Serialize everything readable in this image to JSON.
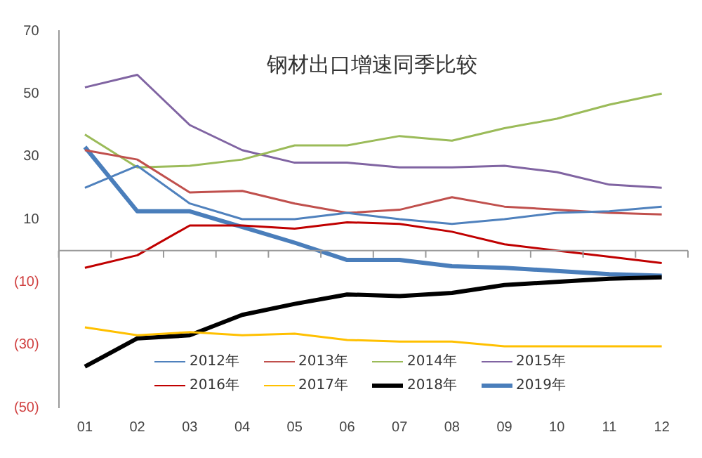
{
  "chart_data": {
    "type": "line",
    "title": "钢材出口增速同季比较",
    "categories": [
      "01",
      "02",
      "03",
      "04",
      "05",
      "06",
      "07",
      "08",
      "09",
      "10",
      "11",
      "12"
    ],
    "ylim": [
      -50,
      70
    ],
    "yticks": [
      {
        "value": -50,
        "label": "(50)"
      },
      {
        "value": -30,
        "label": "(30)"
      },
      {
        "value": -10,
        "label": "(10)"
      },
      10,
      30,
      50,
      70
    ],
    "grid": false,
    "legend": "bottom",
    "marker": "none",
    "line_style": "solid",
    "series": [
      {
        "name": "2012年",
        "color": "#4f81bd",
        "values": [
          20,
          27,
          15,
          10,
          10,
          12,
          10,
          8.5,
          10,
          12,
          12.5,
          14
        ]
      },
      {
        "name": "2013年",
        "color": "#c0504d",
        "values": [
          32,
          29,
          18.5,
          19,
          15,
          12,
          13,
          17,
          14,
          13,
          12,
          11.5
        ]
      },
      {
        "name": "2014年",
        "color": "#9bbb59",
        "values": [
          37,
          26.5,
          27,
          29,
          33.5,
          33.5,
          36.5,
          35,
          39,
          42,
          46.5,
          50
        ]
      },
      {
        "name": "2015年",
        "color": "#8064a2",
        "values": [
          52,
          56,
          40,
          32,
          28,
          28,
          26.5,
          26.5,
          27,
          25,
          21,
          20
        ]
      },
      {
        "name": "2016年",
        "color": "#c00000",
        "values": [
          -5.5,
          -1.5,
          8,
          8,
          7,
          9,
          8.5,
          6,
          2,
          0,
          -2,
          -4
        ]
      },
      {
        "name": "2017年",
        "color": "#ffc000",
        "values": [
          -24.5,
          -27,
          -26,
          -27,
          -26.5,
          -28.5,
          -29,
          -29,
          -30.5,
          -30.5,
          -30.5,
          -30.5
        ]
      },
      {
        "name": "2018年",
        "color": "#000000",
        "values": [
          -37,
          -28,
          -27,
          -20.5,
          -17,
          -14,
          -14.5,
          -13.5,
          -11,
          -10,
          -9,
          -8.5
        ]
      },
      {
        "name": "2019年",
        "color": "#4a7ebb",
        "values": [
          33,
          12.5,
          12.5,
          7.5,
          2.5,
          -3,
          -3,
          -5,
          -5.5,
          -6.5,
          -7.5,
          -8
        ]
      }
    ]
  }
}
